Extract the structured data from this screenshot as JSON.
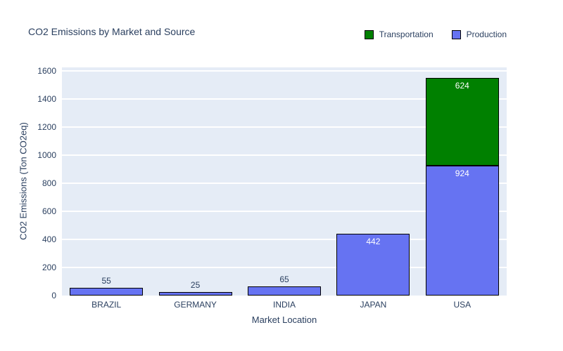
{
  "title": "CO2 Emissions by Market and Source",
  "legend": {
    "items": [
      {
        "label": "Transportation",
        "color": "#008000"
      },
      {
        "label": "Production",
        "color": "#6673F2"
      }
    ]
  },
  "colors": {
    "plot_background": "#E5ECF6",
    "gridline": "#FFFFFF",
    "text": "#2a3f5f",
    "bar_border": "#000000",
    "inside_label": "#FFFFFF",
    "transportation": "#008000",
    "production": "#6673F2"
  },
  "chart_data": {
    "type": "bar",
    "stacked": true,
    "title": "CO2 Emissions by Market and Source",
    "xlabel": "Market Location",
    "ylabel": "CO2 Emissions (Ton CO2eq)",
    "categories": [
      "BRAZIL",
      "GERMANY",
      "INDIA",
      "JAPAN",
      "USA"
    ],
    "series": [
      {
        "name": "Production",
        "color": "#6673F2",
        "values": [
          55,
          25,
          65,
          442,
          924
        ]
      },
      {
        "name": "Transportation",
        "color": "#008000",
        "values": [
          0,
          0,
          0,
          0,
          624
        ]
      }
    ],
    "ylim": [
      0,
      1625
    ],
    "yticks": [
      0,
      200,
      400,
      600,
      800,
      1000,
      1200,
      1400,
      1600
    ],
    "grid": true,
    "legend_position": "top-right"
  }
}
